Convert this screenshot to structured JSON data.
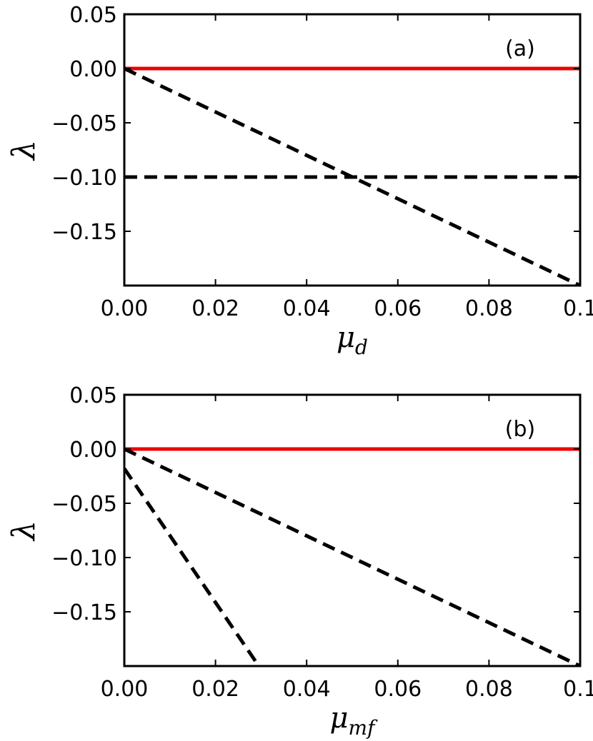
{
  "chart_data": [
    {
      "type": "line",
      "panel_label": "(a)",
      "xlabel": "μ",
      "xlabel_sub": "d",
      "ylabel": "λ",
      "xlim": [
        0,
        0.1
      ],
      "ylim": [
        -0.2,
        0.05
      ],
      "xticks": [
        0,
        0.02,
        0.04,
        0.06,
        0.08,
        0.1
      ],
      "xtick_labels": [
        "0.00",
        "0.02",
        "0.04",
        "0.06",
        "0.08",
        "0.1"
      ],
      "yticks": [
        0.05,
        0.0,
        -0.05,
        -0.1,
        -0.15
      ],
      "ytick_labels": [
        "0.05",
        "0.00",
        "−0.05",
        "−0.10",
        "−0.15"
      ],
      "grid": false,
      "series": [
        {
          "style": "solid",
          "color": "#ee0000",
          "x": [
            0,
            0.1
          ],
          "y": [
            0,
            0
          ]
        },
        {
          "style": "dashed",
          "color": "#000000",
          "x": [
            0,
            0.1
          ],
          "y": [
            0,
            -0.2
          ]
        },
        {
          "style": "dashed",
          "color": "#000000",
          "x": [
            0,
            0.1
          ],
          "y": [
            -0.1,
            -0.1
          ]
        }
      ]
    },
    {
      "type": "line",
      "panel_label": "(b)",
      "xlabel": "μ",
      "xlabel_sub": "mf",
      "ylabel": "λ",
      "xlim": [
        0,
        0.1
      ],
      "ylim": [
        -0.2,
        0.05
      ],
      "xticks": [
        0,
        0.02,
        0.04,
        0.06,
        0.08,
        0.1
      ],
      "xtick_labels": [
        "0.00",
        "0.02",
        "0.04",
        "0.06",
        "0.08",
        "0.1"
      ],
      "yticks": [
        0.05,
        0.0,
        -0.05,
        -0.1,
        -0.15
      ],
      "ytick_labels": [
        "0.05",
        "0.00",
        "−0.05",
        "−0.10",
        "−0.15"
      ],
      "grid": false,
      "series": [
        {
          "style": "solid",
          "color": "#ee0000",
          "x": [
            0,
            0.1
          ],
          "y": [
            0,
            0
          ]
        },
        {
          "style": "dashed",
          "color": "#000000",
          "x": [
            0,
            0.1
          ],
          "y": [
            0,
            -0.2
          ]
        },
        {
          "style": "dashed",
          "color": "#000000",
          "x": [
            0,
            0.0295
          ],
          "y": [
            -0.018,
            -0.2
          ]
        }
      ]
    }
  ]
}
